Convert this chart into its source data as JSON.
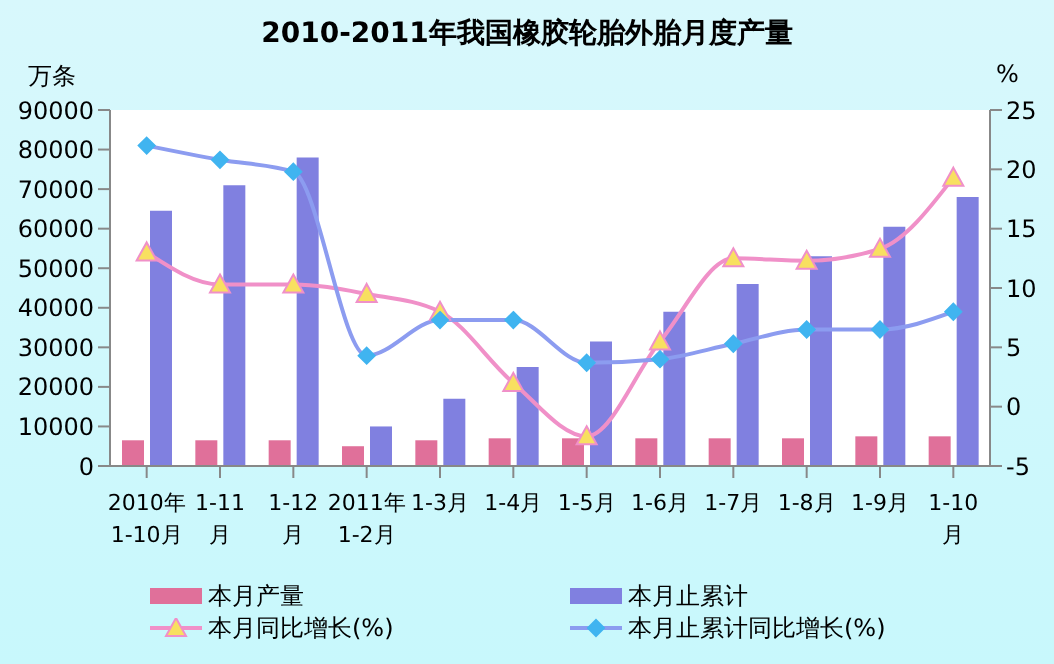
{
  "chart_data": {
    "type": "bar",
    "title": "2010-2011年我国橡胶轮胎外胎月度产量",
    "ylabel": "万条",
    "y2label": "%",
    "categories": [
      "2010年\n1-10月",
      "1-11\n月",
      "1-12\n月",
      "2011年\n1-2月",
      "1-3月",
      "1-4月",
      "1-5月",
      "1-6月",
      "1-7月",
      "1-8月",
      "1-9月",
      "1-10\n月"
    ],
    "series": [
      {
        "name": "本月产量",
        "color": "#e0709a",
        "values": [
          6500,
          6500,
          6500,
          5000,
          6500,
          7000,
          7000,
          7000,
          7000,
          7000,
          7500,
          7500
        ]
      },
      {
        "name": "本月止累计",
        "color": "#8080e0",
        "values": [
          64500,
          71000,
          78000,
          10000,
          17000,
          25000,
          31500,
          39000,
          46000,
          53000,
          60500,
          68000
        ]
      },
      {
        "name": "本月同比增长(%)",
        "type": "line",
        "axis": "y2",
        "color": "#f090c8",
        "marker": "triangle",
        "values": [
          13,
          10.3,
          10.3,
          9.5,
          8,
          2,
          -2.5,
          5.5,
          12.5,
          12.3,
          13.3,
          19.3
        ]
      },
      {
        "name": "本月止累计同比增长(%)",
        "type": "line",
        "axis": "y2",
        "color": "#8c9cf0",
        "marker": "diamond",
        "values": [
          22,
          20.8,
          19.8,
          4.3,
          7.3,
          7.3,
          3.7,
          4,
          5.3,
          6.5,
          6.5,
          8
        ]
      }
    ],
    "ylim": [
      0,
      90000
    ],
    "yticks": [
      0,
      10000,
      20000,
      30000,
      40000,
      50000,
      60000,
      70000,
      80000,
      90000
    ],
    "y2lim": [
      -5,
      25
    ],
    "y2ticks": [
      -5,
      0,
      5,
      10,
      15,
      20,
      25
    ],
    "grid": false,
    "legend": "bottom"
  }
}
